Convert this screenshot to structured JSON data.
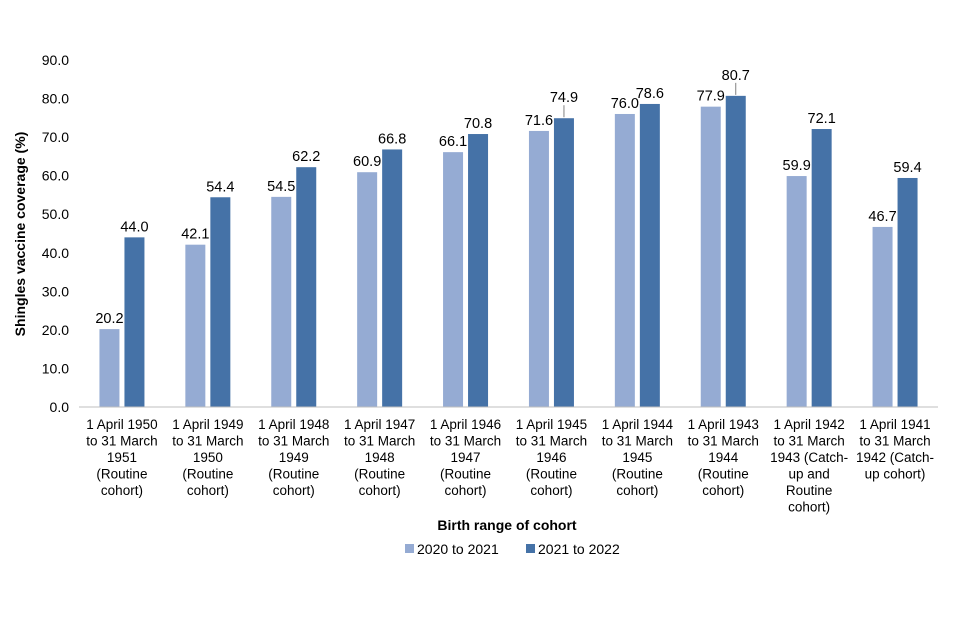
{
  "chart_data": {
    "type": "bar",
    "title": "",
    "xlabel": "Birth range of cohort",
    "ylabel": "Shingles vaccine coverage (%)",
    "ylim": [
      0,
      90
    ],
    "ytick_step": 10,
    "ytick_labels": [
      "0.0",
      "10.0",
      "20.0",
      "30.0",
      "40.0",
      "50.0",
      "60.0",
      "70.0",
      "80.0",
      "90.0"
    ],
    "grid": false,
    "legend_position": "bottom",
    "categories": [
      [
        "1 April 1950",
        "to 31 March",
        "1951",
        "(Routine",
        "cohort)"
      ],
      [
        "1 April 1949",
        "to 31 March",
        "1950",
        "(Routine",
        "cohort)"
      ],
      [
        "1 April 1948",
        "to 31 March",
        "1949",
        "(Routine",
        "cohort)"
      ],
      [
        "1 April 1947",
        "to 31 March",
        "1948",
        "(Routine",
        "cohort)"
      ],
      [
        "1 April 1946",
        "to 31 March",
        "1947",
        "(Routine",
        "cohort)"
      ],
      [
        "1 April 1945",
        "to 31 March",
        "1946",
        "(Routine",
        "cohort)"
      ],
      [
        "1 April 1944",
        "to 31 March",
        "1945",
        "(Routine",
        "cohort)"
      ],
      [
        "1 April 1943",
        "to 31 March",
        "1944",
        "(Routine",
        "cohort)"
      ],
      [
        "1 April 1942",
        "to 31 March",
        "1943 (Catch-",
        "up and",
        "Routine",
        "cohort)"
      ],
      [
        "1 April 1941",
        "to 31 March",
        "1942 (Catch-",
        "up cohort)"
      ]
    ],
    "series": [
      {
        "name": "2020 to 2021",
        "color": "#95abd3",
        "values": [
          20.2,
          42.1,
          54.5,
          60.9,
          66.1,
          71.6,
          76.0,
          77.9,
          59.9,
          46.7
        ],
        "labels": [
          "20.2",
          "42.1",
          "54.5",
          "60.9",
          "66.1",
          "71.6",
          "76.0",
          "77.9",
          "59.9",
          "46.7"
        ]
      },
      {
        "name": "2021 to 2022",
        "color": "#4572a7",
        "values": [
          44.0,
          54.4,
          62.2,
          66.8,
          70.8,
          74.9,
          78.6,
          80.7,
          72.1,
          59.4
        ],
        "labels": [
          "44.0",
          "54.4",
          "62.2",
          "66.8",
          "70.8",
          "74.9",
          "78.6",
          "80.7",
          "72.1",
          "59.4"
        ]
      }
    ]
  }
}
